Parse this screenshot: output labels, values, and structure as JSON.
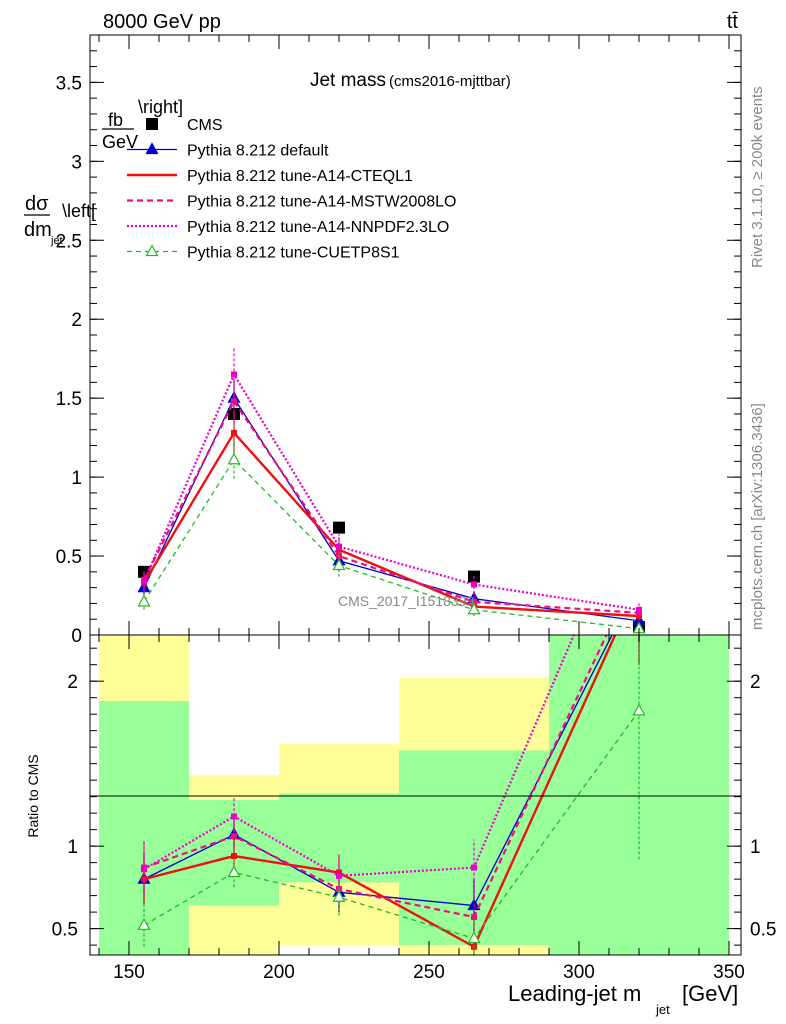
{
  "header": {
    "left": "8000 GeV pp",
    "right": "tt̄"
  },
  "side_text": {
    "rivet": "Rivet 3.1.10, ≥ 200k events",
    "mcplots": "mcplots.cern.ch [arXiv:1306.3436]"
  },
  "chart_data": [
    {
      "type": "line",
      "title": "Jet mass",
      "subtitle": "(cms2016-mjttbar)",
      "watermark": "CMS_2017_I1518399",
      "ylabel": "dσ/dm_jet  \\left[fb/GeV\\right]",
      "xlim": [
        137,
        354
      ],
      "ylim": [
        0,
        3.8
      ],
      "yticks": [
        0,
        0.5,
        1,
        1.5,
        2,
        2.5,
        3,
        3.5
      ],
      "ytick_labels": [
        "0",
        "0.5",
        "1",
        "1.5",
        "2",
        "2.5",
        "3",
        "3.5"
      ],
      "legend_placement": "top-left",
      "x": [
        155,
        185,
        220,
        265,
        320
      ],
      "series": [
        {
          "name": "CMS",
          "style": "data",
          "color": "#000000",
          "values": [
            0.4,
            1.4,
            0.68,
            0.37,
            0.05
          ]
        },
        {
          "name": "Pythia 8.212 default",
          "style": "solid-triangle",
          "color": "#0000cc",
          "values": [
            0.3,
            1.5,
            0.47,
            0.23,
            0.09
          ],
          "err": [
            0.05,
            0.12,
            0.07,
            0.05,
            0.03
          ]
        },
        {
          "name": "Pythia 8.212 tune-A14-CTEQL1",
          "style": "solid-thick",
          "color": "#ee1111",
          "values": [
            0.33,
            1.28,
            0.54,
            0.18,
            0.12
          ],
          "err": [
            0.06,
            0.13,
            0.08,
            0.05,
            0.03
          ]
        },
        {
          "name": "Pythia 8.212 tune-A14-MSTW2008LO",
          "style": "dashed",
          "color": "#ee1177",
          "values": [
            0.35,
            1.48,
            0.5,
            0.21,
            0.14
          ],
          "err": [
            0.06,
            0.14,
            0.08,
            0.05,
            0.03
          ]
        },
        {
          "name": "Pythia 8.212 tune-A14-NNPDF2.3LO",
          "style": "dotted",
          "color": "#ee00cc",
          "values": [
            0.34,
            1.65,
            0.56,
            0.32,
            0.16
          ],
          "err": [
            0.06,
            0.17,
            0.09,
            0.06,
            0.04
          ]
        },
        {
          "name": "Pythia 8.212 tune-CUETP8S1",
          "style": "dashed-open-triangle",
          "color": "#22bb22",
          "values": [
            0.21,
            1.11,
            0.44,
            0.16,
            0.04
          ],
          "err": [
            0.05,
            0.12,
            0.07,
            0.04,
            0.02
          ]
        }
      ]
    },
    {
      "type": "line",
      "ylabel": "Ratio to CMS",
      "xlabel": "Leading-jet m_jet [GeV]",
      "xlim": [
        137,
        354
      ],
      "ylim": [
        0.34,
        2.28
      ],
      "yticks": [
        0.5,
        1,
        2
      ],
      "ytick_labels": [
        "0.5",
        "1",
        "2"
      ],
      "xticks": [
        150,
        200,
        250,
        300,
        350
      ],
      "xtick_labels": [
        "150",
        "200",
        "250",
        "300",
        "350"
      ],
      "bands": [
        {
          "x0": 140,
          "x1": 170,
          "green": [
            0.34,
            1.88
          ],
          "yellow": [
            0.34,
            2.28
          ]
        },
        {
          "x0": 170,
          "x1": 200,
          "green": [
            0.64,
            1.28
          ],
          "yellow": [
            0.34,
            1.43
          ]
        },
        {
          "x0": 200,
          "x1": 240,
          "green": [
            0.78,
            1.32
          ],
          "yellow": [
            0.4,
            1.62
          ]
        },
        {
          "x0": 240,
          "x1": 290,
          "green": [
            0.4,
            1.58
          ],
          "yellow": [
            0.34,
            2.02
          ]
        },
        {
          "x0": 290,
          "x1": 350,
          "green": [
            0.34,
            2.28
          ],
          "yellow": [
            0.34,
            2.28
          ]
        }
      ],
      "x": [
        155,
        185,
        220,
        265,
        320
      ],
      "series": [
        {
          "name": "Pythia 8.212 default",
          "style": "solid-triangle",
          "color": "#0000cc",
          "values": [
            0.8,
            1.07,
            0.72,
            0.64,
            2.6
          ],
          "err": [
            0.15,
            0.09,
            0.12,
            0.16,
            0.5
          ]
        },
        {
          "name": "Pythia 8.212 tune-A14-CTEQL1",
          "style": "solid-thick",
          "color": "#ee1111",
          "values": [
            0.8,
            0.94,
            0.84,
            0.39,
            2.6
          ],
          "err": [
            0.16,
            0.09,
            0.1,
            0.13,
            0.5
          ]
        },
        {
          "name": "Pythia 8.212 tune-A14-MSTW2008LO",
          "style": "dashed",
          "color": "#ee1177",
          "values": [
            0.87,
            1.06,
            0.74,
            0.57,
            2.7
          ],
          "err": [
            0.16,
            0.1,
            0.13,
            0.15,
            0.5
          ]
        },
        {
          "name": "Pythia 8.212 tune-A14-NNPDF2.3LO",
          "style": "dotted",
          "color": "#ee00cc",
          "values": [
            0.86,
            1.18,
            0.82,
            0.87,
            3.2
          ],
          "err": [
            0.16,
            0.12,
            0.13,
            0.17,
            0.5
          ]
        },
        {
          "name": "Pythia 8.212 tune-CUETP8S1",
          "style": "dashed-open-triangle",
          "color": "#22bb22",
          "values": [
            0.52,
            0.84,
            0.69,
            0.44,
            1.82
          ],
          "err": [
            0.13,
            0.09,
            0.11,
            0.12,
            0.9
          ]
        }
      ]
    }
  ]
}
